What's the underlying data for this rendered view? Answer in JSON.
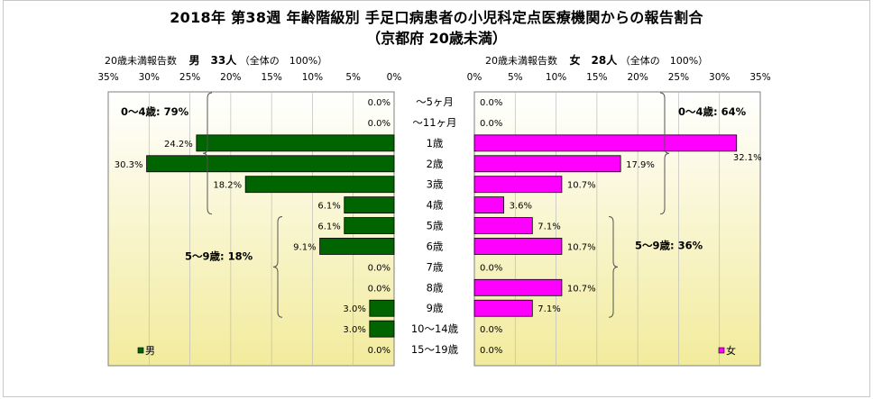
{
  "title": {
    "line1": "2018年 第38週 年齢階級別 手足口病患者の小児科定点医療機関からの報告割合",
    "line2": "（京都府 20歳未満）"
  },
  "headers": {
    "left_prefix": "20歳未満報告数",
    "left_count": "男　33人",
    "left_suffix": "（全体の　100%）",
    "right_prefix": "20歳未満報告数",
    "right_count": "女　28人",
    "right_suffix": "（全体の　100%）"
  },
  "colors": {
    "male": "#006400",
    "female": "#ff00ff",
    "grid": "#7f7f7f",
    "panel_top": "#ffffff",
    "panel_bottom": "#f2eb9c"
  },
  "chart_data": {
    "type": "bar",
    "orientation": "horizontal",
    "layout": "population-pyramid",
    "categories": [
      "〜5ヶ月",
      "〜11ヶ月",
      "1歳",
      "2歳",
      "3歳",
      "4歳",
      "5歳",
      "6歳",
      "7歳",
      "8歳",
      "9歳",
      "10〜14歳",
      "15〜19歳"
    ],
    "series": [
      {
        "name": "男",
        "color": "#006400",
        "values": [
          0.0,
          0.0,
          24.2,
          30.3,
          18.2,
          6.1,
          6.1,
          9.1,
          0.0,
          0.0,
          3.0,
          3.0,
          0.0
        ],
        "labels": [
          "0.0%",
          "0.0%",
          "24.2%",
          "30.3%",
          "18.2%",
          "6.1%",
          "6.1%",
          "9.1%",
          "0.0%",
          "0.0%",
          "3.0%",
          "3.0%",
          "0.0%"
        ]
      },
      {
        "name": "女",
        "color": "#ff00ff",
        "values": [
          0.0,
          0.0,
          32.1,
          17.9,
          10.7,
          3.6,
          7.1,
          10.7,
          0.0,
          10.7,
          7.1,
          0.0,
          0.0
        ],
        "labels": [
          "0.0%",
          "0.0%",
          "32.1%",
          "17.9%",
          "10.7%",
          "3.6%",
          "7.1%",
          "10.7%",
          "0.0%",
          "10.7%",
          "7.1%",
          "0.0%",
          "0.0%"
        ]
      }
    ],
    "xlim": [
      0,
      35
    ],
    "x_ticks": [
      "35%",
      "30%",
      "25%",
      "20%",
      "15%",
      "10%",
      "5%",
      "0%"
    ],
    "x_ticks_right": [
      "0%",
      "5%",
      "10%",
      "15%",
      "20%",
      "25%",
      "30%",
      "35%"
    ],
    "annotations": {
      "male": [
        {
          "text": "0〜4歳: 79%",
          "from": 0,
          "to": 5
        },
        {
          "text": "5〜9歳: 18%",
          "from": 6,
          "to": 10
        }
      ],
      "female": [
        {
          "text": "0〜4歳: 64%",
          "from": 0,
          "to": 5
        },
        {
          "text": "5〜9歳: 36%",
          "from": 6,
          "to": 10
        }
      ]
    },
    "legend": {
      "male": "男",
      "female": "女",
      "position": "bottom-left / bottom-right"
    },
    "grid": true
  }
}
